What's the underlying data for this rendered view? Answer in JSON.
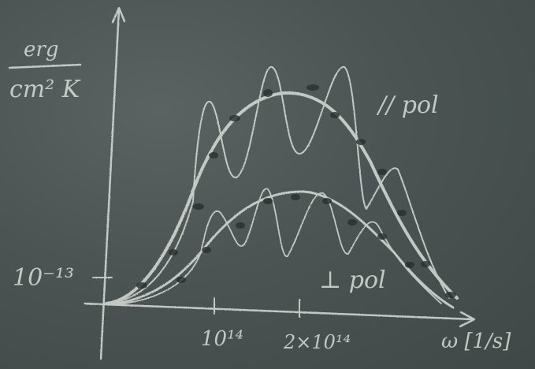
{
  "board": {
    "color": "#4b5453",
    "chalk_color": "#d9ddd8",
    "marker_color": "#2a2f2f"
  },
  "labels": {
    "y_unit_top": "erg",
    "y_unit_bottom": "cm² K",
    "y_tick": "10⁻¹³",
    "x_tick_1": "10¹⁴",
    "x_tick_2": "2×10¹⁴",
    "x_unit": "ω [1/s]",
    "parallel_curve": "// pol",
    "perp_curve": "⊥ pol"
  }
}
